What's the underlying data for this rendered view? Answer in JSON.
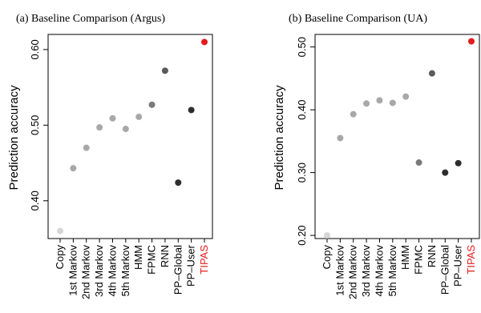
{
  "chart_data": [
    {
      "type": "scatter",
      "title": "(a)  Baseline Comparison (Argus)",
      "ylabel": "Prediction accuracy",
      "xlabel": "",
      "ylim": [
        0.35,
        0.62
      ],
      "yticks": [
        "0.40",
        "0.50",
        "0.60"
      ],
      "ytick_values": [
        0.4,
        0.5,
        0.6
      ],
      "categories": [
        "Copy",
        "1st Markov",
        "2nd Markov",
        "3rd Markov",
        "4th Markov",
        "5th Markov",
        "HMM",
        "FPMC",
        "RNN",
        "PP–Global",
        "PP–User",
        "TIPAS"
      ],
      "values": [
        0.36,
        0.443,
        0.47,
        0.497,
        0.509,
        0.495,
        0.511,
        0.527,
        0.572,
        0.424,
        0.52,
        0.61
      ],
      "point_colors": [
        "#d6d6d6",
        "#a8a8a8",
        "#a8a8a8",
        "#a8a8a8",
        "#a8a8a8",
        "#a8a8a8",
        "#a8a8a8",
        "#7a7a7a",
        "#5a5a5a",
        "#2e2e2e",
        "#2e2e2e",
        "#e41a1c"
      ],
      "label_colors": [
        "#000000",
        "#000000",
        "#000000",
        "#000000",
        "#000000",
        "#000000",
        "#000000",
        "#000000",
        "#000000",
        "#000000",
        "#000000",
        "#e41a1c"
      ]
    },
    {
      "type": "scatter",
      "title": "(b)  Baseline Comparison (UA)",
      "ylabel": "Prediction accuracy",
      "xlabel": "",
      "ylim": [
        0.195,
        0.52
      ],
      "yticks": [
        "0.20",
        "0.30",
        "0.40",
        "0.50"
      ],
      "ytick_values": [
        0.2,
        0.3,
        0.4,
        0.5
      ],
      "categories": [
        "Copy",
        "1st Markov",
        "2nd Markov",
        "3rd Markov",
        "4th Markov",
        "5th Markov",
        "HMM",
        "FPMC",
        "RNN",
        "PP–Global",
        "PP–User",
        "TIPAS"
      ],
      "values": [
        0.2,
        0.355,
        0.393,
        0.41,
        0.415,
        0.411,
        0.421,
        0.316,
        0.458,
        0.3,
        0.315,
        0.509
      ],
      "point_colors": [
        "#d6d6d6",
        "#a8a8a8",
        "#a8a8a8",
        "#a8a8a8",
        "#a8a8a8",
        "#a8a8a8",
        "#a8a8a8",
        "#7a7a7a",
        "#5a5a5a",
        "#2e2e2e",
        "#2e2e2e",
        "#e41a1c"
      ],
      "label_colors": [
        "#000000",
        "#000000",
        "#000000",
        "#000000",
        "#000000",
        "#000000",
        "#000000",
        "#000000",
        "#000000",
        "#000000",
        "#000000",
        "#e41a1c"
      ]
    }
  ]
}
